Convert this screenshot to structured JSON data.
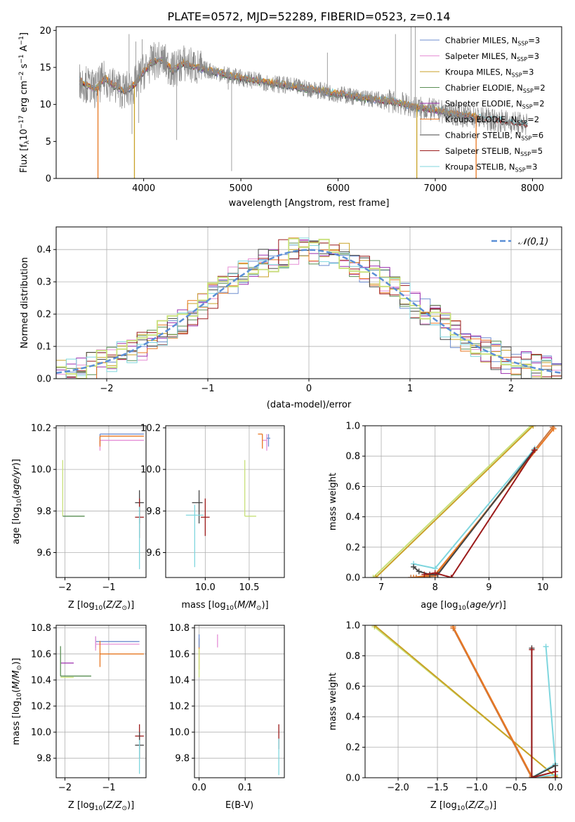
{
  "title": "PLATE=0572, MJD=52289, FIBERID=0523, z=0.14",
  "models": [
    {
      "name": "Chabrier MILES",
      "nssp": "3",
      "color": "#6e8ecf"
    },
    {
      "name": "Salpeter MILES",
      "nssp": "3",
      "color": "#e58fd6"
    },
    {
      "name": "Kroupa MILES",
      "nssp": "3",
      "color": "#c9a227"
    },
    {
      "name": "Chabrier ELODIE",
      "nssp": "2",
      "color": "#5a8f55"
    },
    {
      "name": "Salpeter ELODIE",
      "nssp": "2",
      "color": "#9b2fae"
    },
    {
      "name": "Kroupa ELODIE",
      "nssp": "2",
      "color": "#e87722"
    },
    {
      "name": "Chabrier STELIB",
      "nssp": "6",
      "color": "#444444"
    },
    {
      "name": "Salpeter STELIB",
      "nssp": "5",
      "color": "#9b1b1b"
    },
    {
      "name": "Kroupa STELIB",
      "nssp": "3",
      "color": "#7fd6de"
    }
  ],
  "extra_colors": {
    "data": "#8a8a8a",
    "lime": "#c8e07a",
    "normal": "#5b8fd6",
    "brown": "#c97a45"
  },
  "chart_data": [
    {
      "id": "spectrum",
      "type": "line",
      "xlabel": "wavelength [Angstrom, rest frame]",
      "ylabel_html": "Flux [f_λ 10^-17 erg cm^-2 s^-1 A^-1]",
      "xlim": [
        3100,
        8300
      ],
      "ylim": [
        0,
        20.5
      ],
      "xticks": [
        4000,
        5000,
        6000,
        7000,
        8000
      ],
      "yticks": [
        0,
        5,
        10,
        15,
        20
      ],
      "legend": "top-right",
      "data_continuum": {
        "x": [
          3340,
          3400,
          3500,
          3600,
          3700,
          3800,
          3900,
          4000,
          4100,
          4200,
          4300,
          4400,
          4500,
          4600,
          4700,
          4800,
          4900,
          5000,
          5200,
          5400,
          5600,
          5800,
          6000,
          6200,
          6400,
          6600,
          6800,
          7000,
          7200,
          7400,
          7600,
          7800,
          7950
        ],
        "y": [
          13.2,
          12.8,
          12.0,
          13.5,
          12.5,
          11.8,
          12.5,
          14.5,
          15.8,
          16.0,
          14.5,
          15.6,
          15.2,
          14.8,
          14.5,
          14.2,
          13.8,
          13.6,
          13.1,
          12.7,
          12.3,
          11.9,
          11.4,
          11.0,
          10.6,
          10.3,
          9.6,
          9.2,
          8.7,
          8.3,
          7.9,
          7.6,
          7.3
        ]
      },
      "spikes": [
        {
          "x": 3850,
          "y": 19.5
        },
        {
          "x": 3880,
          "y": 6.0
        },
        {
          "x": 3920,
          "y": 18.5
        },
        {
          "x": 3950,
          "y": 7.5
        },
        {
          "x": 3985,
          "y": 18.8
        },
        {
          "x": 4100,
          "y": 17.8
        },
        {
          "x": 4340,
          "y": 5.2
        },
        {
          "x": 4590,
          "y": 17.0
        },
        {
          "x": 4870,
          "y": 12.0
        },
        {
          "x": 4905,
          "y": 1.0
        },
        {
          "x": 5890,
          "y": 17.0
        },
        {
          "x": 6590,
          "y": 19.5
        },
        {
          "x": 6750,
          "y": 20.5
        },
        {
          "x": 6795,
          "y": 20.5
        },
        {
          "x": 6850,
          "y": 6.0
        }
      ],
      "model_drops": [
        {
          "x": 3530,
          "y": 0,
          "model": 5
        },
        {
          "x": 3905,
          "y": 0,
          "model": 2
        },
        {
          "x": 6810,
          "y": 0,
          "model": 2
        },
        {
          "x": 7420,
          "y": 0,
          "model": 5
        }
      ]
    },
    {
      "id": "residuals",
      "type": "line",
      "xlabel": "(data-model)/error",
      "ylabel": "Normed distribution",
      "xlim": [
        -2.5,
        2.5
      ],
      "ylim": [
        0,
        0.47
      ],
      "xticks": [
        -2,
        -1,
        0,
        1,
        2
      ],
      "yticks": [
        0.0,
        0.1,
        0.2,
        0.3,
        0.4
      ],
      "legend": "top-right",
      "legend_label": "𝒩(0,1)",
      "normal": {
        "mu": 0,
        "sigma": 1
      }
    },
    {
      "id": "age-Z",
      "type": "scatter",
      "xlabel": "Z [log10(Z/Z⊙)]",
      "ylabel": "age [log10(age/yr)]",
      "xlim": [
        -2.2,
        -0.15
      ],
      "ylim": [
        9.48,
        10.21
      ],
      "xticks": [
        -2,
        -1
      ],
      "yticks": [
        9.6,
        9.8,
        10.0,
        10.2
      ],
      "points": [
        {
          "x": -1.2,
          "y": 10.17,
          "ex": [
            0.0,
            1.0
          ],
          "ey": [
            0.05,
            0.0
          ],
          "m": 0
        },
        {
          "x": -1.2,
          "y": 10.14,
          "ex": [
            0.0,
            1.0
          ],
          "ey": [
            0.05,
            0.0
          ],
          "m": 1
        },
        {
          "x": -1.2,
          "y": 10.16,
          "ex": [
            0.0,
            1.0
          ],
          "ey": [
            0.05,
            0.0
          ],
          "m": 5
        },
        {
          "x": -2.05,
          "y": 9.775,
          "ex": [
            0.0,
            0.0
          ],
          "ey": [
            0.0,
            0.27
          ],
          "m": 9
        },
        {
          "x": -2.05,
          "y": 9.775,
          "ex": [
            0.0,
            0.5
          ],
          "ey": [
            0.0,
            0.0
          ],
          "m": 3
        },
        {
          "x": -0.3,
          "y": 9.84,
          "ex": [
            0.1,
            0.1
          ],
          "ey": [
            0.1,
            0.06
          ],
          "m": 6
        },
        {
          "x": -0.3,
          "y": 9.77,
          "ex": [
            0.1,
            0.1
          ],
          "ey": [
            0.1,
            0.09
          ],
          "m": 7
        },
        {
          "x": -0.3,
          "y": 9.77,
          "ex": [
            0.0,
            0.0
          ],
          "ey": [
            0.25,
            0.05
          ],
          "m": 8
        }
      ]
    },
    {
      "id": "age-mass",
      "type": "scatter",
      "xlabel": "mass [log10(M/M⊙)]",
      "ylabel": "",
      "xlim": [
        9.55,
        10.9
      ],
      "ylim": [
        9.48,
        10.21
      ],
      "xticks": [
        10.0,
        10.5
      ],
      "yticks": [
        9.6,
        9.8,
        10.0,
        10.2
      ],
      "points": [
        {
          "x": 10.7,
          "y": 10.14,
          "ex": [
            0.05,
            0.0
          ],
          "ey": [
            0.05,
            0.03
          ],
          "m": 1
        },
        {
          "x": 10.65,
          "y": 10.17,
          "ex": [
            0.05,
            0.0
          ],
          "ey": [
            0.07,
            0.0
          ],
          "m": 5
        },
        {
          "x": 10.72,
          "y": 10.15,
          "ex": [
            0.02,
            0.02
          ],
          "ey": [
            0.04,
            0.02
          ],
          "m": 0
        },
        {
          "x": 10.45,
          "y": 9.775,
          "ex": [
            0.0,
            0.13
          ],
          "ey": [
            0.0,
            0.27
          ],
          "m": 9
        },
        {
          "x": 9.93,
          "y": 9.84,
          "ex": [
            0.08,
            0.04
          ],
          "ey": [
            0.1,
            0.06
          ],
          "m": 6
        },
        {
          "x": 10.0,
          "y": 9.77,
          "ex": [
            0.05,
            0.05
          ],
          "ey": [
            0.09,
            0.09
          ],
          "m": 7
        },
        {
          "x": 9.88,
          "y": 9.78,
          "ex": [
            0.1,
            0.1
          ],
          "ey": [
            0.25,
            0.05
          ],
          "m": 8
        }
      ]
    },
    {
      "id": "weight-age",
      "type": "line",
      "xlabel": "age [log10(age/yr)]",
      "ylabel": "mass weight",
      "xlim": [
        6.7,
        10.35
      ],
      "ylim": [
        0,
        1
      ],
      "xticks": [
        7,
        8,
        9,
        10
      ],
      "yticks": [
        0.0,
        0.2,
        0.4,
        0.6,
        0.8,
        1.0
      ],
      "series": [
        {
          "m": 9,
          "x": [
            6.85,
            9.78
          ],
          "y": [
            0.0,
            1.0
          ]
        },
        {
          "m": 2,
          "x": [
            6.9,
            9.82
          ],
          "y": [
            0.0,
            1.0
          ]
        },
        {
          "m": 10,
          "x": [
            7.55,
            7.65,
            8.0,
            10.18
          ],
          "y": [
            0.0,
            0.0,
            0.01,
            0.99
          ]
        },
        {
          "m": 5,
          "x": [
            7.6,
            8.0,
            10.2
          ],
          "y": [
            0.0,
            0.02,
            0.98
          ]
        },
        {
          "m": 8,
          "x": [
            7.6,
            8.0,
            9.85
          ],
          "y": [
            0.09,
            0.06,
            0.85
          ]
        },
        {
          "m": 6,
          "x": [
            7.6,
            7.7,
            7.9,
            8.05,
            9.84
          ],
          "y": [
            0.07,
            0.04,
            0.02,
            0.02,
            0.84
          ]
        },
        {
          "m": 7,
          "x": [
            7.8,
            8.0,
            8.3,
            9.85
          ],
          "y": [
            0.02,
            0.03,
            0.0,
            0.84
          ]
        }
      ]
    },
    {
      "id": "mass-Z",
      "type": "scatter",
      "xlabel": "Z [log10(Z/Z⊙)]",
      "ylabel": "mass [log10(M/M⊙)]",
      "xlim": [
        -2.2,
        -0.15
      ],
      "ylim": [
        9.65,
        10.82
      ],
      "xticks": [
        -2,
        -1
      ],
      "yticks": [
        9.8,
        10.0,
        10.2,
        10.4,
        10.6,
        10.8
      ],
      "points": [
        {
          "x": -1.3,
          "y": 10.695,
          "ex": [
            0.0,
            1.0
          ],
          "ey": [
            0.05,
            0.04
          ],
          "m": 0
        },
        {
          "x": -1.3,
          "y": 10.675,
          "ex": [
            0.0,
            1.0
          ],
          "ey": [
            0.05,
            0.06
          ],
          "m": 1
        },
        {
          "x": -1.2,
          "y": 10.6,
          "ex": [
            0.0,
            1.0
          ],
          "ey": [
            0.1,
            0.1
          ],
          "m": 5
        },
        {
          "x": -2.1,
          "y": 10.53,
          "ex": [
            0.0,
            0.3
          ],
          "ey": [
            0.0,
            0.0
          ],
          "m": 4
        },
        {
          "x": -2.1,
          "y": 10.43,
          "ex": [
            0.0,
            0.7
          ],
          "ey": [
            0.0,
            0.23
          ],
          "m": 3
        },
        {
          "x": -2.1,
          "y": 10.42,
          "ex": [
            0.0,
            0.3
          ],
          "ey": [
            0.0,
            0.0
          ],
          "m": 9
        },
        {
          "x": -0.3,
          "y": 9.97,
          "ex": [
            0.1,
            0.1
          ],
          "ey": [
            0.1,
            0.09
          ],
          "m": 7
        },
        {
          "x": -0.3,
          "y": 9.9,
          "ex": [
            0.1,
            0.1
          ],
          "ey": [
            0.1,
            0.1
          ],
          "m": 6
        },
        {
          "x": -0.3,
          "y": 9.89,
          "ex": [
            0.0,
            0.0
          ],
          "ey": [
            0.21,
            0.05
          ],
          "m": 8
        }
      ]
    },
    {
      "id": "mass-EBV",
      "type": "scatter",
      "xlabel": "E(B-V)",
      "ylabel": "",
      "xlim": [
        -0.01,
        0.185
      ],
      "ylim": [
        9.65,
        10.82
      ],
      "xticks": [
        0.0,
        0.1
      ],
      "yticks": [
        9.8,
        10.0,
        10.2,
        10.4,
        10.6,
        10.8
      ],
      "points": [
        {
          "x": 0.0,
          "y": 10.6,
          "ex": [
            0.0,
            0.0
          ],
          "ey": [
            0.12,
            0.12
          ],
          "m": 5
        },
        {
          "x": 0.0,
          "y": 10.52,
          "ex": [
            0.0,
            0.0
          ],
          "ey": [
            0.1,
            0.12
          ],
          "m": 9
        },
        {
          "x": 0.0,
          "y": 10.7,
          "ex": [
            0.0,
            0.0
          ],
          "ey": [
            0.05,
            0.05
          ],
          "m": 0
        },
        {
          "x": 0.04,
          "y": 10.7,
          "ex": [
            0.0,
            0.0
          ],
          "ey": [
            0.05,
            0.05
          ],
          "m": 1
        },
        {
          "x": 0.173,
          "y": 9.97,
          "ex": [
            0.0,
            0.0
          ],
          "ey": [
            0.1,
            0.09
          ],
          "m": 7
        },
        {
          "x": 0.173,
          "y": 9.85,
          "ex": [
            0.0,
            0.0
          ],
          "ey": [
            0.18,
            0.1
          ],
          "m": 8
        }
      ]
    },
    {
      "id": "weight-Z",
      "type": "line",
      "xlabel": "Z [log10(Z/Z⊙)]",
      "ylabel": "mass weight",
      "xlim": [
        -2.42,
        0.08
      ],
      "ylim": [
        0,
        1
      ],
      "xticks": [
        -2.0,
        -1.5,
        -1.0,
        -0.5,
        0.0
      ],
      "yticks": [
        0.0,
        0.2,
        0.4,
        0.6,
        0.8,
        1.0
      ],
      "series": [
        {
          "m": 9,
          "x": [
            -2.3,
            0.0
          ],
          "y": [
            0.99,
            0.01
          ]
        },
        {
          "m": 2,
          "x": [
            -2.3,
            0.02
          ],
          "y": [
            1.0,
            0.0
          ]
        },
        {
          "m": 10,
          "x": [
            -1.3,
            -0.3,
            0.0
          ],
          "y": [
            0.98,
            0.0,
            0.0
          ]
        },
        {
          "m": 5,
          "x": [
            -1.3,
            -0.3,
            0.0
          ],
          "y": [
            0.99,
            0.01,
            0.0
          ]
        },
        {
          "m": 8,
          "x": [
            -0.12,
            0.0,
            -0.3,
            0.0
          ],
          "y": [
            0.86,
            0.09,
            0.0,
            0.02
          ]
        },
        {
          "m": 6,
          "x": [
            -0.3,
            -0.3,
            0.0,
            0.0
          ],
          "y": [
            0.85,
            0.0,
            0.08,
            0.0
          ]
        },
        {
          "m": 7,
          "x": [
            -0.3,
            -0.3,
            0.0,
            0.0
          ],
          "y": [
            0.84,
            0.0,
            0.04,
            0.0
          ]
        }
      ]
    }
  ]
}
